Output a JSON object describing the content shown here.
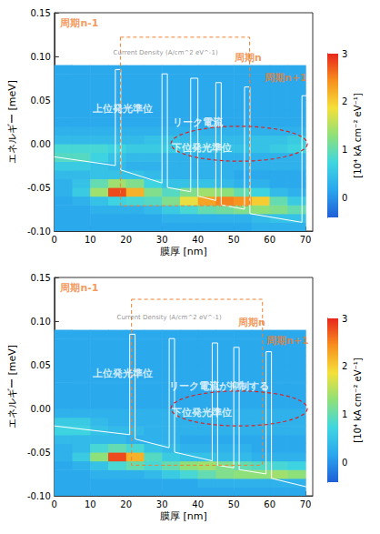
{
  "chart_data": [
    {
      "type": "heatmap",
      "x_label": "膜厚 [nm]",
      "y_label": "エネルギー [meV]",
      "header": "Current Density (A/cm^2 eV^-1)",
      "period_labels": [
        "周期n-1",
        "周期n",
        "周期n+1"
      ],
      "upper_level": "上位発光準位",
      "lower_level": "下位発光準位",
      "leak_label": "リーク電流",
      "grid": false,
      "xlim": [
        0,
        72
      ],
      "xticks": [
        0,
        10,
        20,
        30,
        40,
        50,
        60,
        70
      ],
      "ylim": [
        -0.1,
        0.15
      ],
      "yticks": [
        {
          "value": -0.1,
          "label": "-0.10"
        },
        {
          "value": -0.05,
          "label": "-0.05"
        },
        {
          "value": 0,
          "label": "0.00"
        },
        {
          "value": 0.05,
          "label": "0.05"
        },
        {
          "value": 0.1,
          "label": "0.10"
        },
        {
          "value": 0.15,
          "label": "0.15"
        }
      ],
      "x": [
        2.5,
        7.5,
        12.5,
        17.5,
        22.5,
        27.5,
        32.5,
        37.5,
        42.5,
        47.5,
        52.5,
        57.5,
        62.5,
        67.5
      ],
      "y": [
        -0.095,
        -0.085,
        -0.075,
        -0.065,
        -0.055,
        -0.045,
        -0.035,
        -0.025,
        -0.015,
        -0.005,
        0.005,
        0.015,
        0.025,
        0.035,
        0.045,
        0.055,
        0.065,
        0.075,
        0.085
      ],
      "z": [
        [
          0.2,
          0.2,
          0.2,
          0.2,
          0.2,
          0.2,
          0.2,
          0.2,
          0.2,
          0.2,
          0.2,
          0.3,
          0.3,
          0.3
        ],
        [
          0.2,
          0.2,
          0.2,
          0.2,
          0.2,
          0.2,
          0.3,
          0.3,
          0.3,
          0.3,
          0.3,
          0.4,
          0.5,
          0.5
        ],
        [
          0.2,
          0.2,
          0.3,
          0.3,
          0.3,
          0.4,
          0.6,
          0.8,
          1.0,
          1.1,
          1.2,
          1.3,
          1.2,
          1.0
        ],
        [
          0.2,
          0.3,
          0.5,
          0.7,
          0.8,
          0.9,
          1.2,
          1.8,
          2.3,
          2.5,
          2.4,
          2.0,
          1.0,
          0.6
        ],
        [
          0.3,
          0.6,
          1.4,
          2.8,
          2.2,
          1.2,
          0.9,
          1.2,
          1.4,
          1.3,
          1.0,
          0.7,
          0.4,
          0.3
        ],
        [
          0.3,
          0.5,
          1.0,
          1.4,
          1.2,
          0.7,
          0.5,
          0.5,
          0.5,
          0.4,
          0.3,
          0.3,
          0.2,
          0.2
        ],
        [
          0.4,
          0.4,
          0.5,
          0.5,
          0.5,
          0.4,
          0.3,
          0.3,
          0.3,
          0.3,
          0.2,
          0.2,
          0.2,
          0.2
        ],
        [
          0.6,
          0.6,
          0.5,
          0.4,
          0.3,
          0.3,
          0.3,
          0.3,
          0.3,
          0.3,
          0.3,
          0.3,
          0.3,
          0.3
        ],
        [
          0.9,
          0.9,
          0.7,
          0.5,
          0.4,
          0.4,
          0.3,
          0.3,
          0.3,
          0.3,
          0.3,
          0.3,
          0.3,
          0.3
        ],
        [
          0.8,
          0.8,
          0.8,
          0.7,
          0.6,
          0.6,
          0.6,
          0.5,
          0.5,
          0.5,
          0.5,
          0.5,
          0.6,
          0.7
        ],
        [
          0.4,
          0.4,
          0.4,
          0.4,
          0.4,
          0.5,
          0.5,
          0.4,
          0.4,
          0.4,
          0.4,
          0.5,
          0.5,
          0.6
        ],
        [
          0.3,
          0.3,
          0.3,
          0.3,
          0.3,
          0.3,
          0.3,
          0.3,
          0.3,
          0.3,
          0.3,
          0.3,
          0.3,
          0.3
        ],
        [
          0.2,
          0.2,
          0.2,
          0.2,
          0.2,
          0.2,
          0.2,
          0.2,
          0.2,
          0.2,
          0.2,
          0.2,
          0.2,
          0.2
        ],
        [
          0.2,
          0.2,
          0.2,
          0.2,
          0.2,
          0.2,
          0.2,
          0.2,
          0.2,
          0.2,
          0.2,
          0.2,
          0.2,
          0.2
        ],
        [
          0.2,
          0.2,
          0.2,
          0.2,
          0.2,
          0.2,
          0.2,
          0.2,
          0.2,
          0.2,
          0.2,
          0.2,
          0.2,
          0.2
        ],
        [
          0.2,
          0.2,
          0.2,
          0.2,
          0.2,
          0.2,
          0.2,
          0.2,
          0.2,
          0.2,
          0.2,
          0.2,
          0.2,
          0.2
        ],
        [
          0.2,
          0.2,
          0.2,
          0.2,
          0.2,
          0.2,
          0.2,
          0.2,
          0.2,
          0.2,
          0.2,
          0.2,
          0.2,
          0.2
        ],
        [
          0.2,
          0.2,
          0.2,
          0.2,
          0.2,
          0.2,
          0.2,
          0.2,
          0.2,
          0.2,
          0.2,
          0.2,
          0.2,
          0.2
        ],
        [
          0.2,
          0.2,
          0.2,
          0.2,
          0.2,
          0.2,
          0.2,
          0.2,
          0.2,
          0.2,
          0.2,
          0.2,
          0.2,
          0.2
        ]
      ],
      "band_profile": {
        "x": [
          0,
          17,
          17,
          18.5,
          18.5,
          30,
          30,
          31.5,
          31.5,
          38,
          38,
          40,
          40,
          45,
          45,
          46.5,
          46.5,
          53,
          53,
          54.5,
          54.5,
          69,
          69,
          70.5
        ],
        "y": [
          -0.015,
          -0.025,
          0.085,
          0.085,
          -0.03,
          -0.045,
          0.08,
          0.08,
          -0.05,
          -0.055,
          0.075,
          0.075,
          -0.06,
          -0.065,
          0.07,
          0.07,
          -0.07,
          -0.075,
          0.065,
          0.065,
          -0.08,
          -0.09,
          0.055,
          0.055
        ]
      },
      "colorbar": {
        "range": [
          -0.4,
          3
        ],
        "ticks": [
          0,
          1,
          2,
          3
        ],
        "label": "[10⁴ kA cm⁻² eV⁻¹]",
        "colors": [
          "#1f5fd6",
          "#2aa6ee",
          "#3fd6e0",
          "#8ee07a",
          "#f4e03a",
          "#f7901e",
          "#e8261c"
        ]
      }
    },
    {
      "type": "heatmap",
      "x_label": "膜厚 [nm]",
      "y_label": "エネルギー [meV]",
      "header": "Current Density (A/cm^2 eV^-1)",
      "period_labels": [
        "周期n-1",
        "周期n",
        "周期n+1"
      ],
      "upper_level": "上位発光準位",
      "lower_level": "下位発光準位",
      "leak_label": "リーク電流が抑制する",
      "grid": false,
      "xlim": [
        0,
        72
      ],
      "xticks": [
        0,
        10,
        20,
        30,
        40,
        50,
        60,
        70
      ],
      "ylim": [
        -0.1,
        0.15
      ],
      "yticks": [
        {
          "value": -0.1,
          "label": "-0.10"
        },
        {
          "value": -0.05,
          "label": "-0.05"
        },
        {
          "value": 0,
          "label": "0.00"
        },
        {
          "value": 0.05,
          "label": "0.05"
        },
        {
          "value": 0.1,
          "label": "0.10"
        },
        {
          "value": 0.15,
          "label": "0.15"
        }
      ],
      "x": [
        2.5,
        7.5,
        12.5,
        17.5,
        22.5,
        27.5,
        32.5,
        37.5,
        42.5,
        47.5,
        52.5,
        57.5,
        62.5,
        67.5
      ],
      "y": [
        -0.095,
        -0.085,
        -0.075,
        -0.065,
        -0.055,
        -0.045,
        -0.035,
        -0.025,
        -0.015,
        -0.005,
        0.005,
        0.015,
        0.025,
        0.035,
        0.045,
        0.055,
        0.065,
        0.075,
        0.085
      ],
      "z": [
        [
          0.2,
          0.2,
          0.2,
          0.2,
          0.2,
          0.2,
          0.2,
          0.2,
          0.2,
          0.2,
          0.2,
          0.2,
          0.2,
          0.2
        ],
        [
          0.2,
          0.2,
          0.2,
          0.2,
          0.2,
          0.2,
          0.2,
          0.2,
          0.3,
          0.3,
          0.3,
          0.3,
          0.3,
          0.3
        ],
        [
          0.2,
          0.2,
          0.3,
          0.3,
          0.3,
          0.4,
          0.6,
          0.8,
          1.0,
          1.2,
          1.3,
          1.3,
          1.4,
          1.3
        ],
        [
          0.2,
          0.3,
          0.5,
          0.8,
          1.0,
          0.8,
          1.0,
          1.3,
          1.4,
          1.2,
          1.0,
          0.9,
          0.8,
          0.7
        ],
        [
          0.3,
          0.6,
          1.3,
          2.8,
          2.2,
          0.9,
          0.6,
          0.5,
          0.5,
          0.4,
          0.4,
          0.3,
          0.3,
          0.3
        ],
        [
          0.3,
          0.4,
          0.8,
          1.0,
          0.8,
          0.5,
          0.4,
          0.3,
          0.3,
          0.3,
          0.3,
          0.2,
          0.2,
          0.2
        ],
        [
          0.4,
          0.4,
          0.4,
          0.4,
          0.3,
          0.3,
          0.3,
          0.2,
          0.2,
          0.2,
          0.2,
          0.2,
          0.2,
          0.2
        ],
        [
          0.7,
          0.7,
          0.5,
          0.4,
          0.4,
          0.3,
          0.3,
          0.3,
          0.3,
          0.3,
          0.3,
          0.3,
          0.3,
          0.3
        ],
        [
          0.6,
          0.6,
          0.4,
          0.3,
          0.3,
          0.3,
          0.3,
          0.3,
          0.3,
          0.3,
          0.3,
          0.3,
          0.3,
          0.3
        ],
        [
          0.3,
          0.3,
          0.3,
          0.3,
          0.3,
          0.3,
          0.3,
          0.3,
          0.3,
          0.3,
          0.3,
          0.3,
          0.3,
          0.3
        ],
        [
          0.2,
          0.2,
          0.2,
          0.2,
          0.2,
          0.2,
          0.2,
          0.2,
          0.2,
          0.2,
          0.2,
          0.2,
          0.2,
          0.2
        ],
        [
          0.2,
          0.2,
          0.2,
          0.2,
          0.2,
          0.2,
          0.2,
          0.2,
          0.2,
          0.2,
          0.2,
          0.2,
          0.2,
          0.2
        ],
        [
          0.2,
          0.2,
          0.2,
          0.2,
          0.2,
          0.2,
          0.2,
          0.2,
          0.2,
          0.2,
          0.2,
          0.2,
          0.2,
          0.2
        ],
        [
          0.2,
          0.2,
          0.2,
          0.2,
          0.2,
          0.2,
          0.2,
          0.2,
          0.2,
          0.2,
          0.2,
          0.2,
          0.2,
          0.2
        ],
        [
          0.2,
          0.2,
          0.2,
          0.2,
          0.2,
          0.2,
          0.2,
          0.2,
          0.2,
          0.2,
          0.2,
          0.2,
          0.2,
          0.2
        ],
        [
          0.2,
          0.2,
          0.2,
          0.2,
          0.2,
          0.2,
          0.2,
          0.2,
          0.2,
          0.2,
          0.2,
          0.2,
          0.2,
          0.2
        ],
        [
          0.2,
          0.2,
          0.2,
          0.2,
          0.2,
          0.2,
          0.2,
          0.2,
          0.2,
          0.2,
          0.2,
          0.2,
          0.2,
          0.2
        ],
        [
          0.2,
          0.2,
          0.2,
          0.2,
          0.2,
          0.2,
          0.2,
          0.2,
          0.2,
          0.2,
          0.2,
          0.2,
          0.2,
          0.2
        ],
        [
          0.2,
          0.2,
          0.2,
          0.2,
          0.2,
          0.2,
          0.2,
          0.2,
          0.2,
          0.2,
          0.2,
          0.2,
          0.2,
          0.2
        ]
      ],
      "band_profile": {
        "x": [
          0,
          21,
          21,
          22.5,
          22.5,
          32,
          32,
          33.5,
          33.5,
          44,
          44,
          45.5,
          45.5,
          50,
          50,
          51.5,
          51.5,
          59,
          59,
          60.5,
          60.5,
          70.5
        ],
        "y": [
          -0.02,
          -0.03,
          0.085,
          0.085,
          -0.035,
          -0.045,
          0.08,
          0.08,
          -0.05,
          -0.06,
          0.075,
          0.075,
          -0.065,
          -0.068,
          0.07,
          0.07,
          -0.07,
          -0.075,
          0.065,
          0.065,
          -0.08,
          -0.09
        ]
      },
      "colorbar": {
        "range": [
          -0.4,
          3
        ],
        "ticks": [
          0,
          1,
          2,
          3
        ],
        "label": "[10⁴ kA cm⁻² eV⁻¹]",
        "colors": [
          "#1f5fd6",
          "#2aa6ee",
          "#3fd6e0",
          "#8ee07a",
          "#f4e03a",
          "#f7901e",
          "#e8261c"
        ]
      }
    }
  ]
}
